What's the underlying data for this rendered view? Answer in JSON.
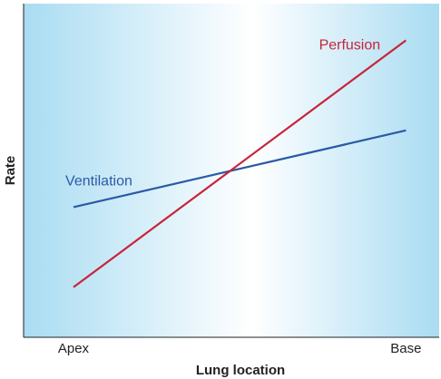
{
  "chart_data": {
    "type": "line",
    "xlabel": "Lung location",
    "ylabel": "Rate",
    "x_ticks": [
      "Apex",
      "Base"
    ],
    "x": [
      0,
      1
    ],
    "xlim": [
      -0.15,
      1.1
    ],
    "ylim": [
      0,
      1
    ],
    "grid": false,
    "background_gradient": [
      "#a9dcf2",
      "#ffffff",
      "#a9dcf2"
    ],
    "series": [
      {
        "name": "Ventilation",
        "values": [
          0.39,
          0.62
        ],
        "color": "#2b5aa6"
      },
      {
        "name": "Perfusion",
        "values": [
          0.15,
          0.89
        ],
        "color": "#c8243a"
      }
    ]
  }
}
